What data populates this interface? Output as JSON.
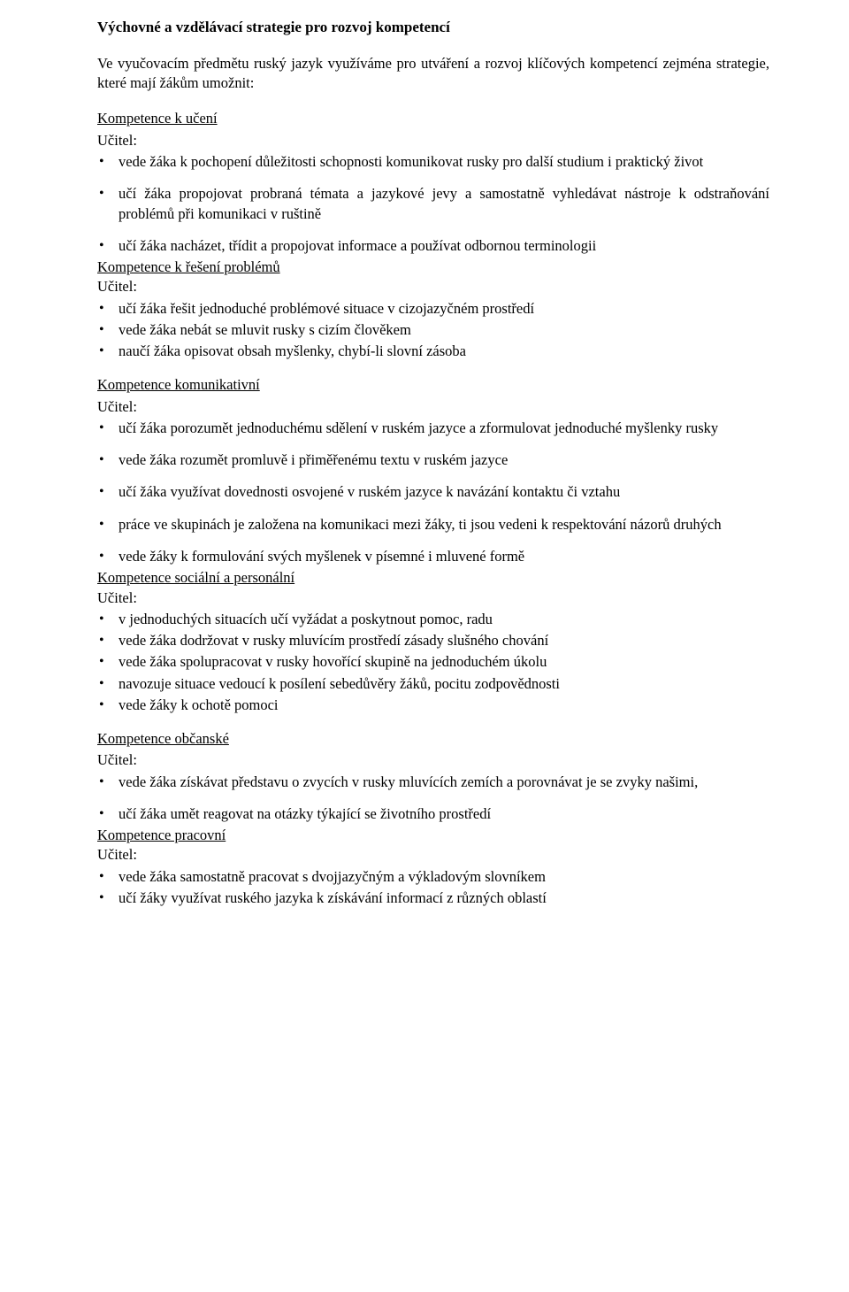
{
  "title": "Výchovné a vzdělávací strategie pro rozvoj kompetencí",
  "intro": "Ve vyučovacím předmětu ruský jazyk využíváme pro utváření a rozvoj klíčových kompetencí zejména strategie, které mají žákům umožnit:",
  "teacher": "Učitel:",
  "s1": {
    "head": "Kompetence k učení",
    "i1": "vede žáka k pochopení důležitosti schopnosti komunikovat rusky pro další studium i praktický život",
    "i2": "učí žáka propojovat probraná témata a jazykové jevy a samostatně vyhledávat nástroje k odstraňování problémů při komunikaci v ruštině",
    "i3": "učí žáka nacházet, třídit a propojovat informace a používat odbornou terminologii"
  },
  "s2": {
    "head": "Kompetence k řešení problémů",
    "i1": "učí žáka řešit jednoduché problémové situace v cizojazyčném prostředí",
    "i2": "vede žáka nebát se mluvit rusky s cizím člověkem",
    "i3": "naučí žáka opisovat obsah myšlenky, chybí-li slovní zásoba"
  },
  "s3": {
    "head": "Kompetence komunikativní",
    "i1": "učí žáka porozumět jednoduchému sdělení v ruském jazyce a zformulovat jednoduché myšlenky rusky",
    "i2": "vede žáka rozumět promluvě i přiměřenému textu v ruském jazyce",
    "i3": "učí žáka využívat dovednosti osvojené v ruském jazyce k navázání kontaktu či vztahu",
    "i4": "práce ve skupinách je založena na komunikaci mezi žáky, ti jsou vedeni k respektování názorů druhých",
    "i5": "vede žáky k formulování svých myšlenek v písemné i mluvené formě"
  },
  "s4": {
    "head": "Kompetence sociální a personální",
    "i1": "v jednoduchých situacích učí vyžádat a poskytnout pomoc, radu",
    "i2": "vede žáka dodržovat v rusky mluvícím prostředí zásady slušného chování",
    "i3": "vede žáka spolupracovat v rusky hovořící skupině na jednoduchém úkolu",
    "i4": "navozuje situace vedoucí k posílení sebedůvěry žáků, pocitu zodpovědnosti",
    "i5": "vede žáky k ochotě pomoci"
  },
  "s5": {
    "head": "Kompetence občanské",
    "i1": "vede žáka získávat představu o zvycích v rusky mluvících zemích a porovnávat je se zvyky našimi,",
    "i2": "učí žáka umět reagovat na otázky týkající se životního prostředí"
  },
  "s6": {
    "head": "Kompetence pracovní",
    "i1": "vede žáka samostatně pracovat s dvojjazyčným a výkladovým slovníkem",
    "i2": "učí žáky využívat ruského jazyka k získávání informací z různých oblastí"
  }
}
